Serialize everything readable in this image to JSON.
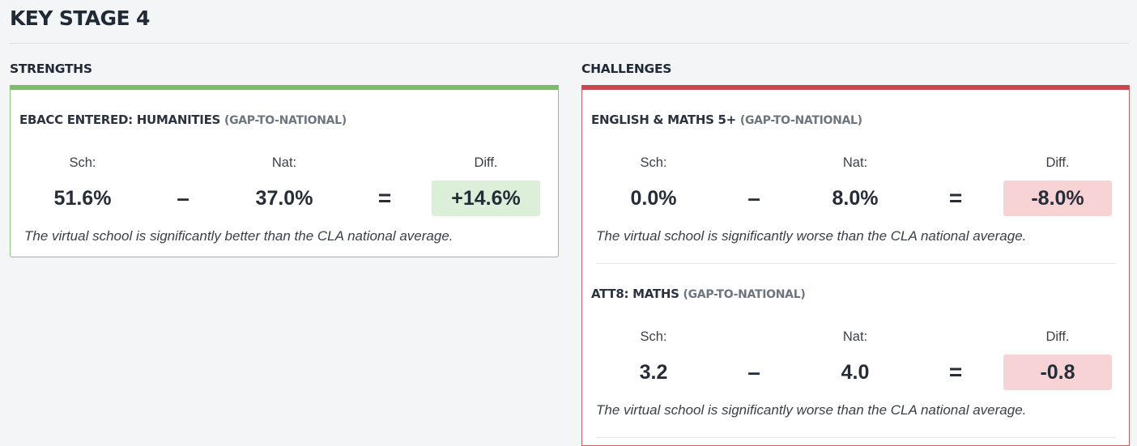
{
  "page": {
    "title": "KEY STAGE 4"
  },
  "strengths": {
    "heading": "STRENGTHS",
    "color": "#7dbb6c",
    "items": [
      {
        "title": "EBACC ENTERED: HUMANITIES",
        "subtitle": "(GAP-TO-NATIONAL)",
        "sch_label": "Sch:",
        "nat_label": "Nat:",
        "diff_label": "Diff.",
        "sch": "51.6%",
        "nat": "37.0%",
        "diff": "+14.6%",
        "minus": "–",
        "equals": "=",
        "note": "The virtual school is significantly better than the CLA national average."
      }
    ]
  },
  "challenges": {
    "heading": "CHALLENGES",
    "color": "#c9484f",
    "items": [
      {
        "title": "ENGLISH & MATHS 5+",
        "subtitle": "(GAP-TO-NATIONAL)",
        "sch_label": "Sch:",
        "nat_label": "Nat:",
        "diff_label": "Diff.",
        "sch": "0.0%",
        "nat": "8.0%",
        "diff": "-8.0%",
        "minus": "–",
        "equals": "=",
        "note": "The virtual school is significantly worse than the CLA national average."
      },
      {
        "title": "ATT8: MATHS",
        "subtitle": "(GAP-TO-NATIONAL)",
        "sch_label": "Sch:",
        "nat_label": "Nat:",
        "diff_label": "Diff.",
        "sch": "3.2",
        "nat": "4.0",
        "diff": "-0.8",
        "minus": "–",
        "equals": "=",
        "note": "The virtual school is significantly worse than the CLA national average."
      }
    ]
  }
}
